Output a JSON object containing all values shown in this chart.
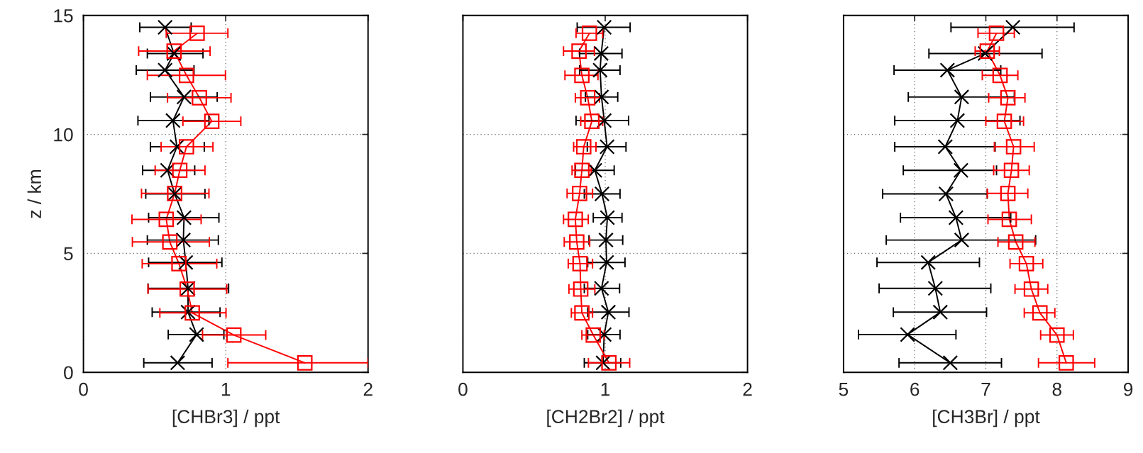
{
  "chart_data": [
    {
      "type": "line",
      "orientation": "horizontal",
      "xlabel": "[CHBr3] / ppt",
      "ylabel": "z / km",
      "xlim": [
        0,
        2
      ],
      "xticks": [
        0,
        1,
        2
      ],
      "ylim": [
        0,
        15
      ],
      "yticks": [
        0,
        5,
        10,
        15
      ],
      "grid": true,
      "line_style": "solid",
      "series": [
        {
          "color": "#000000",
          "marker": "cross",
          "x": [
            14.5,
            13.4,
            12.7,
            11.57,
            10.58,
            9.48,
            8.49,
            7.5,
            6.5,
            5.56,
            4.62,
            3.53,
            2.53,
            1.59,
            0.4
          ],
          "values": [
            0.574,
            0.636,
            0.574,
            0.707,
            0.629,
            0.657,
            0.591,
            0.641,
            0.707,
            0.702,
            0.719,
            0.735,
            0.735,
            0.795,
            0.662
          ],
          "errors": [
            [
              0.396,
              0.757
            ],
            [
              0.449,
              0.84
            ],
            [
              0.371,
              0.777
            ],
            [
              0.471,
              0.94
            ],
            [
              0.383,
              0.882
            ],
            [
              0.471,
              0.849
            ],
            [
              0.416,
              0.782
            ],
            [
              0.438,
              0.854
            ],
            [
              0.458,
              0.952
            ],
            [
              0.449,
              0.948
            ],
            [
              0.458,
              0.973
            ],
            [
              0.454,
              1.02
            ],
            [
              0.483,
              0.96
            ],
            [
              0.596,
              0.987
            ],
            [
              0.424,
              0.904
            ]
          ]
        },
        {
          "color": "#ff0000",
          "marker": "square",
          "x": [
            14.25,
            13.5,
            12.48,
            11.54,
            10.55,
            9.48,
            8.49,
            7.52,
            6.43,
            5.48,
            4.57,
            3.5,
            2.5,
            1.57,
            0.4
          ],
          "values": [
            0.799,
            0.637,
            0.724,
            0.815,
            0.902,
            0.724,
            0.677,
            0.641,
            0.582,
            0.607,
            0.671,
            0.729,
            0.765,
            1.057,
            1.556
          ],
          "errors": [
            [
              0.582,
              1.015
            ],
            [
              0.388,
              0.89
            ],
            [
              0.449,
              0.998
            ],
            [
              0.591,
              1.037
            ],
            [
              0.699,
              1.106
            ],
            [
              0.546,
              0.91
            ],
            [
              0.504,
              0.854
            ],
            [
              0.408,
              0.882
            ],
            [
              0.341,
              0.827
            ],
            [
              0.344,
              0.885
            ],
            [
              0.413,
              0.937
            ],
            [
              0.454,
              1.007
            ],
            [
              0.537,
              1.002
            ],
            [
              0.837,
              1.281
            ],
            [
              1.015,
              2.0
            ]
          ]
        }
      ]
    },
    {
      "type": "line",
      "orientation": "horizontal",
      "xlabel": "[CH2Br2] / ppt",
      "xlim": [
        0,
        2
      ],
      "xticks": [
        0,
        1,
        2
      ],
      "ylim": [
        0,
        15
      ],
      "yticks": [
        0,
        5,
        10,
        15
      ],
      "tick_labels": "x",
      "grid": true,
      "line_style": "solid",
      "series": [
        {
          "color": "#000000",
          "marker": "cross",
          "x": [
            14.5,
            13.4,
            12.7,
            11.57,
            10.58,
            9.48,
            8.49,
            7.5,
            6.5,
            5.56,
            4.62,
            3.53,
            2.53,
            1.59,
            0.4
          ],
          "values": [
            0.993,
            0.972,
            0.964,
            0.974,
            0.993,
            1.013,
            0.927,
            0.977,
            1.015,
            1.005,
            1.01,
            0.974,
            1.022,
            0.993,
            0.985
          ],
          "errors": [
            [
              0.803,
              1.175
            ],
            [
              0.82,
              1.118
            ],
            [
              0.82,
              1.104
            ],
            [
              0.861,
              1.088
            ],
            [
              0.795,
              1.164
            ],
            [
              0.874,
              1.146
            ],
            [
              0.791,
              1.063
            ],
            [
              0.853,
              1.104
            ],
            [
              0.916,
              1.118
            ],
            [
              0.886,
              1.123
            ],
            [
              0.877,
              1.139
            ],
            [
              0.853,
              1.101
            ],
            [
              0.877,
              1.167
            ],
            [
              0.877,
              1.104
            ],
            [
              0.853,
              1.109
            ]
          ]
        },
        {
          "color": "#ff0000",
          "marker": "square",
          "x": [
            14.25,
            13.5,
            12.48,
            11.54,
            10.55,
            9.48,
            8.49,
            7.52,
            6.43,
            5.48,
            4.57,
            3.5,
            2.5,
            1.57,
            0.4
          ],
          "values": [
            0.889,
            0.816,
            0.836,
            0.877,
            0.906,
            0.849,
            0.836,
            0.82,
            0.79,
            0.8,
            0.823,
            0.828,
            0.836,
            0.916,
            1.026
          ],
          "errors": [
            [
              0.795,
              0.982
            ],
            [
              0.707,
              0.924
            ],
            [
              0.717,
              0.949
            ],
            [
              0.79,
              0.96
            ],
            [
              0.828,
              0.982
            ],
            [
              0.778,
              0.935
            ],
            [
              0.767,
              0.902
            ],
            [
              0.732,
              0.911
            ],
            [
              0.707,
              0.881
            ],
            [
              0.712,
              0.891
            ],
            [
              0.74,
              0.911
            ],
            [
              0.745,
              0.927
            ],
            [
              0.762,
              0.911
            ],
            [
              0.836,
              0.993
            ],
            [
              0.882,
              1.172
            ]
          ]
        }
      ]
    },
    {
      "type": "line",
      "orientation": "horizontal",
      "xlabel": "[CH3Br] / ppt",
      "xlim": [
        5,
        9
      ],
      "xticks": [
        5,
        6,
        7,
        8,
        9
      ],
      "ylim": [
        0,
        15
      ],
      "yticks": [
        0,
        5,
        10,
        15
      ],
      "tick_labels": "x",
      "grid": true,
      "line_style": "solid",
      "series": [
        {
          "color": "#000000",
          "marker": "cross",
          "x": [
            14.5,
            13.4,
            12.7,
            11.57,
            10.58,
            9.48,
            8.49,
            7.5,
            6.5,
            5.56,
            4.62,
            3.53,
            2.53,
            1.59,
            0.4
          ],
          "values": [
            7.38,
            6.99,
            6.46,
            6.66,
            6.6,
            6.43,
            6.65,
            6.44,
            6.58,
            6.66,
            6.19,
            6.29,
            6.36,
            5.9,
            6.5
          ],
          "errors": [
            [
              6.51,
              8.24
            ],
            [
              6.2,
              7.79
            ],
            [
              5.71,
              7.21
            ],
            [
              5.91,
              7.4
            ],
            [
              5.72,
              7.48
            ],
            [
              5.72,
              7.13
            ],
            [
              5.84,
              7.15
            ],
            [
              5.55,
              7.02
            ],
            [
              5.8,
              7.35
            ],
            [
              5.6,
              7.7
            ],
            [
              5.47,
              6.91
            ],
            [
              5.5,
              7.07
            ],
            [
              5.7,
              7.01
            ],
            [
              5.21,
              6.58
            ],
            [
              5.78,
              7.22
            ]
          ]
        },
        {
          "color": "#ff0000",
          "marker": "square",
          "x": [
            14.25,
            13.5,
            12.48,
            11.54,
            10.55,
            9.48,
            8.49,
            7.52,
            6.43,
            5.48,
            4.57,
            3.5,
            2.5,
            1.57,
            0.4
          ],
          "values": [
            7.15,
            7.02,
            7.2,
            7.31,
            7.26,
            7.39,
            7.36,
            7.31,
            7.33,
            7.42,
            7.57,
            7.64,
            7.76,
            8.0,
            8.13
          ],
          "errors": [
            [
              6.89,
              7.4
            ],
            [
              6.85,
              7.19
            ],
            [
              6.95,
              7.45
            ],
            [
              7.04,
              7.55
            ],
            [
              7.0,
              7.53
            ],
            [
              7.12,
              7.68
            ],
            [
              7.11,
              7.61
            ],
            [
              7.02,
              7.59
            ],
            [
              7.03,
              7.64
            ],
            [
              7.17,
              7.69
            ],
            [
              7.34,
              7.8
            ],
            [
              7.41,
              7.87
            ],
            [
              7.54,
              7.97
            ],
            [
              7.77,
              8.23
            ],
            [
              7.74,
              8.53
            ]
          ]
        }
      ]
    }
  ]
}
